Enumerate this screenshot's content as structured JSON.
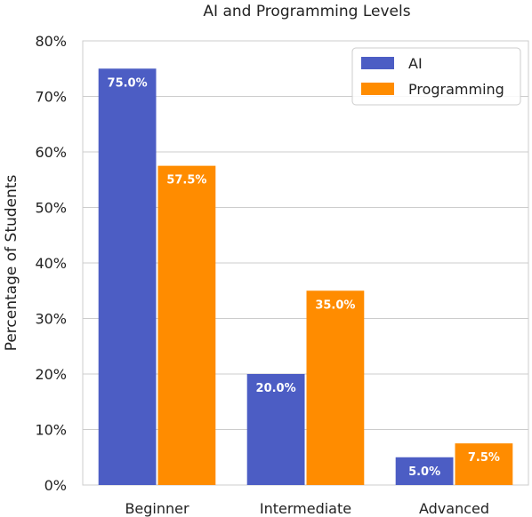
{
  "chart_data": {
    "type": "bar",
    "title": "AI and Programming Levels",
    "xlabel": "",
    "ylabel": "Percentage of Students",
    "categories": [
      "Beginner",
      "Intermediate",
      "Advanced"
    ],
    "series": [
      {
        "name": "AI",
        "values": [
          75.0,
          20.0,
          5.0
        ],
        "labels": [
          "75.0%",
          "20.0%",
          "5.0%"
        ],
        "color": "#4c5dc4"
      },
      {
        "name": "Programming",
        "values": [
          57.5,
          35.0,
          7.5
        ],
        "labels": [
          "57.5%",
          "35.0%",
          "7.5%"
        ],
        "color": "#ff8c00"
      }
    ],
    "ylim": [
      0,
      80
    ],
    "yticks": [
      0,
      10,
      20,
      30,
      40,
      50,
      60,
      70,
      80
    ],
    "ytick_labels": [
      "0%",
      "10%",
      "20%",
      "30%",
      "40%",
      "50%",
      "60%",
      "70%",
      "80%"
    ],
    "grid": true,
    "grid_axis": "y",
    "legend_position": "top-right"
  }
}
